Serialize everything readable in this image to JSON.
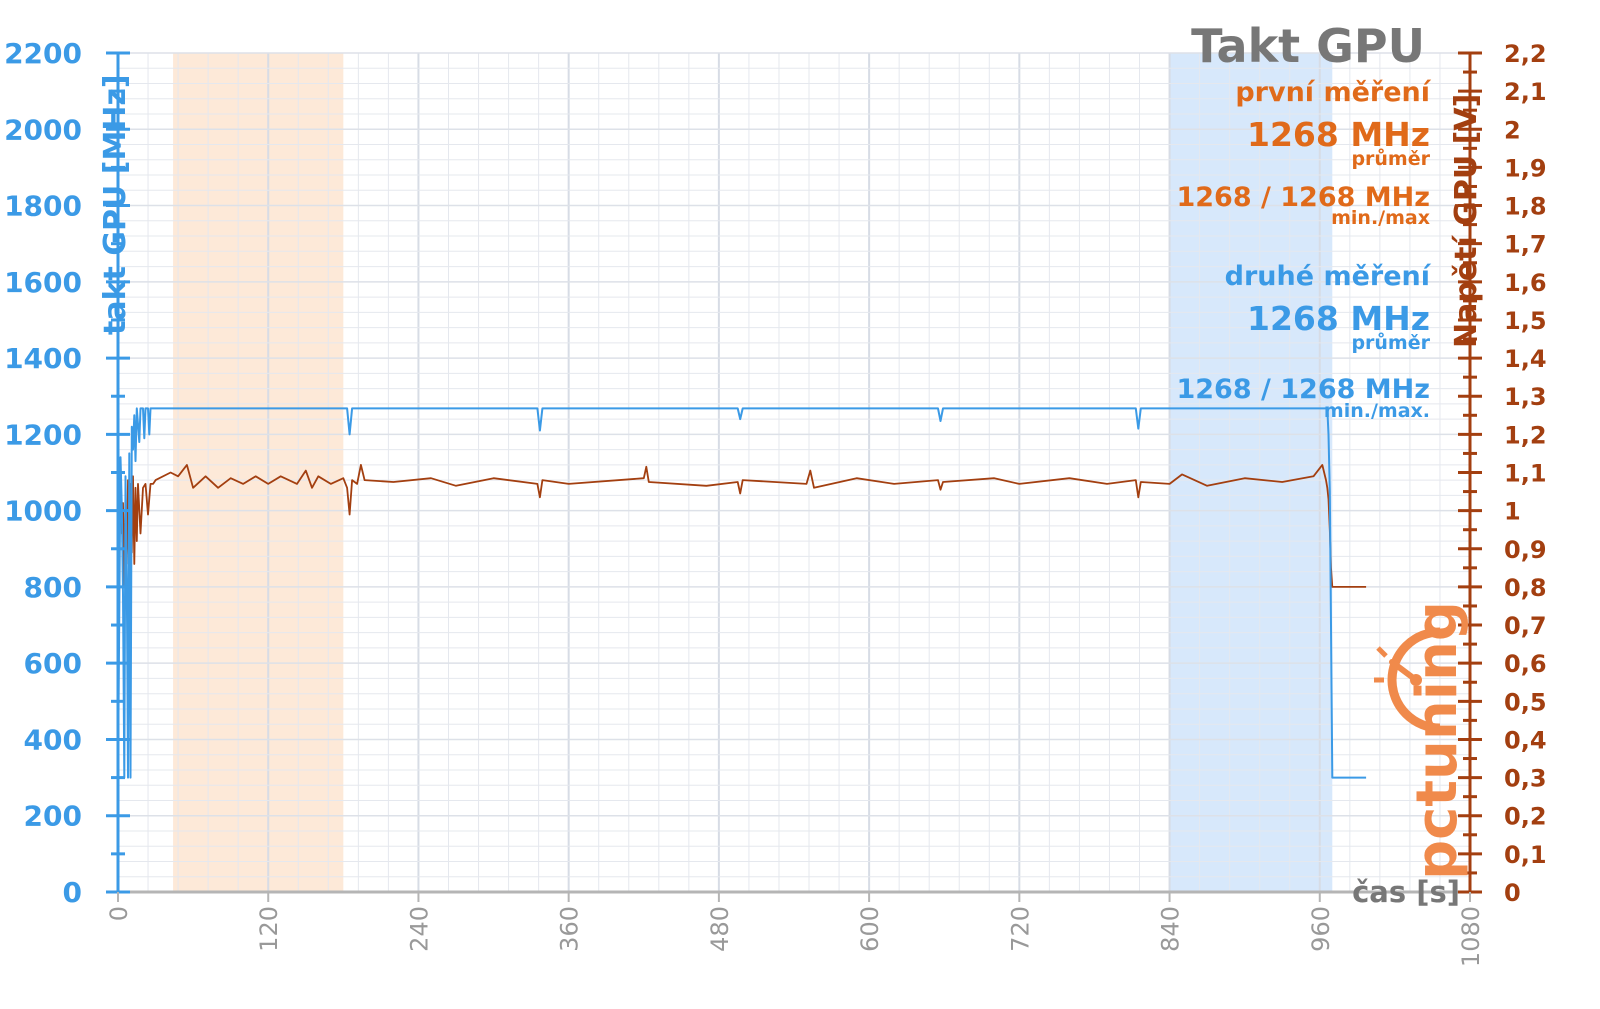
{
  "colors": {
    "clock": "#3b9ae6",
    "voltage": "#a33f10",
    "orange_text": "#e06a1a",
    "title": "#777777",
    "grid": "#e5e8ee",
    "band_orange": "#fde9d8",
    "band_blue": "#d7e8fb",
    "logo": "#f08a4b",
    "axis_gray": "#b5b5b5"
  },
  "legend": {
    "title": "Takt GPU",
    "first_label": "první měření",
    "first_avg": "1268 MHz",
    "first_avg_caption": "průměr",
    "first_minmax": "1268 / 1268 MHz",
    "first_minmax_caption": "min./max",
    "second_label": "druhé měření",
    "second_avg": "1268 MHz",
    "second_avg_caption": "průměr",
    "second_minmax": "1268 / 1268 MHz",
    "second_minmax_caption": "min./max."
  },
  "logo": {
    "text": "pctuning",
    "icon": "stopwatch-icon"
  },
  "chart_data": {
    "type": "line",
    "xlabel": "čas [s]",
    "ylabel_left": "takt GPU [MHz]",
    "ylabel_right": "Napětí GPU [V]",
    "x_ticks": [
      0,
      120,
      240,
      360,
      480,
      600,
      720,
      840,
      960,
      1080
    ],
    "xlim": [
      0,
      1080
    ],
    "y_left_ticks": [
      0,
      200,
      400,
      600,
      800,
      1000,
      1200,
      1400,
      1600,
      1800,
      2000,
      2200
    ],
    "ylim_left": [
      0,
      2200
    ],
    "y_right_ticks": [
      "0",
      "0,1",
      "0,2",
      "0,3",
      "0,4",
      "0,5",
      "0,6",
      "0,7",
      "0,8",
      "0,9",
      "1",
      "1,1",
      "1,2",
      "1,3",
      "1,4",
      "1,5",
      "1,6",
      "1,7",
      "1,8",
      "1,9",
      "2",
      "2,1",
      "2,2"
    ],
    "ylim_right": [
      0,
      2.2
    ],
    "grid": true,
    "shaded_ranges": [
      {
        "x0": 44,
        "x1": 180,
        "color": "orange"
      },
      {
        "x0": 840,
        "x1": 970,
        "color": "blue"
      }
    ],
    "series": [
      {
        "axis": "left",
        "color": "clock",
        "points": [
          [
            0,
            300
          ],
          [
            2,
            1140
          ],
          [
            3,
            1010
          ],
          [
            4,
            780
          ],
          [
            5,
            300
          ],
          [
            6,
            1090
          ],
          [
            7,
            820
          ],
          [
            8,
            300
          ],
          [
            9,
            1150
          ],
          [
            10,
            300
          ],
          [
            11,
            1220
          ],
          [
            12,
            1160
          ],
          [
            13,
            1250
          ],
          [
            14,
            1130
          ],
          [
            15,
            1268
          ],
          [
            17,
            1180
          ],
          [
            18,
            1268
          ],
          [
            20,
            1268
          ],
          [
            21,
            1190
          ],
          [
            22,
            1268
          ],
          [
            24,
            1268
          ],
          [
            25,
            1200
          ],
          [
            26,
            1268
          ],
          [
            183,
            1268
          ],
          [
            185,
            1200
          ],
          [
            187,
            1268
          ],
          [
            335,
            1268
          ],
          [
            337,
            1210
          ],
          [
            339,
            1268
          ],
          [
            495,
            1268
          ],
          [
            497,
            1240
          ],
          [
            499,
            1268
          ],
          [
            655,
            1268
          ],
          [
            657,
            1235
          ],
          [
            659,
            1268
          ],
          [
            813,
            1268
          ],
          [
            815,
            1215
          ],
          [
            817,
            1268
          ],
          [
            966,
            1268
          ],
          [
            967,
            1200
          ],
          [
            968,
            1050
          ],
          [
            969,
            700
          ],
          [
            970,
            300
          ],
          [
            997,
            300
          ]
        ]
      },
      {
        "axis": "right",
        "color": "voltage",
        "points": [
          [
            0,
            0.8
          ],
          [
            2,
            1.06
          ],
          [
            3,
            0.94
          ],
          [
            4,
            1.02
          ],
          [
            5,
            0.8
          ],
          [
            6,
            1.05
          ],
          [
            7,
            0.86
          ],
          [
            8,
            1.08
          ],
          [
            9,
            0.8
          ],
          [
            10,
            1.07
          ],
          [
            11,
            0.89
          ],
          [
            12,
            1.09
          ],
          [
            13,
            0.86
          ],
          [
            14,
            1.06
          ],
          [
            15,
            0.92
          ],
          [
            16,
            1.07
          ],
          [
            18,
            0.94
          ],
          [
            20,
            1.06
          ],
          [
            22,
            1.07
          ],
          [
            24,
            0.99
          ],
          [
            26,
            1.07
          ],
          [
            28,
            1.07
          ],
          [
            30,
            1.08
          ],
          [
            42,
            1.1
          ],
          [
            48,
            1.09
          ],
          [
            55,
            1.12
          ],
          [
            60,
            1.06
          ],
          [
            70,
            1.09
          ],
          [
            80,
            1.06
          ],
          [
            90,
            1.085
          ],
          [
            100,
            1.07
          ],
          [
            110,
            1.09
          ],
          [
            120,
            1.07
          ],
          [
            130,
            1.09
          ],
          [
            143,
            1.07
          ],
          [
            150,
            1.105
          ],
          [
            155,
            1.06
          ],
          [
            160,
            1.09
          ],
          [
            170,
            1.07
          ],
          [
            180,
            1.085
          ],
          [
            183,
            1.06
          ],
          [
            185,
            0.99
          ],
          [
            187,
            1.08
          ],
          [
            191,
            1.07
          ],
          [
            194,
            1.12
          ],
          [
            197,
            1.08
          ],
          [
            220,
            1.075
          ],
          [
            250,
            1.085
          ],
          [
            270,
            1.065
          ],
          [
            300,
            1.085
          ],
          [
            335,
            1.07
          ],
          [
            337,
            1.035
          ],
          [
            339,
            1.08
          ],
          [
            360,
            1.07
          ],
          [
            420,
            1.085
          ],
          [
            422,
            1.115
          ],
          [
            424,
            1.075
          ],
          [
            470,
            1.065
          ],
          [
            495,
            1.075
          ],
          [
            497,
            1.045
          ],
          [
            499,
            1.08
          ],
          [
            550,
            1.07
          ],
          [
            553,
            1.105
          ],
          [
            556,
            1.06
          ],
          [
            590,
            1.085
          ],
          [
            620,
            1.07
          ],
          [
            655,
            1.08
          ],
          [
            657,
            1.055
          ],
          [
            659,
            1.075
          ],
          [
            700,
            1.085
          ],
          [
            720,
            1.07
          ],
          [
            760,
            1.085
          ],
          [
            790,
            1.07
          ],
          [
            813,
            1.08
          ],
          [
            815,
            1.035
          ],
          [
            817,
            1.075
          ],
          [
            840,
            1.07
          ],
          [
            850,
            1.095
          ],
          [
            870,
            1.065
          ],
          [
            900,
            1.085
          ],
          [
            930,
            1.075
          ],
          [
            955,
            1.09
          ],
          [
            962,
            1.12
          ],
          [
            965,
            1.08
          ],
          [
            966,
            1.06
          ],
          [
            967,
            1.03
          ],
          [
            968,
            0.95
          ],
          [
            969,
            0.85
          ],
          [
            970,
            0.8
          ],
          [
            997,
            0.8
          ]
        ]
      }
    ]
  }
}
